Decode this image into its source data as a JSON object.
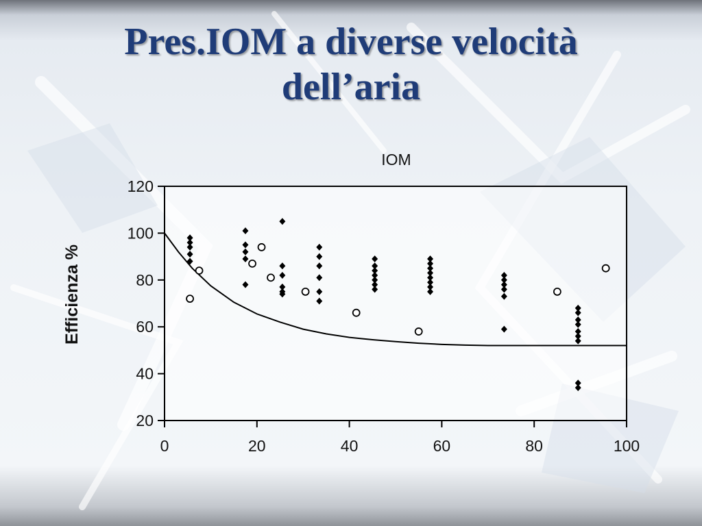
{
  "slide": {
    "title_line1": "Pres.IOM a diverse velocità",
    "title_line2": "dell’aria"
  },
  "chart_data": {
    "type": "scatter",
    "title": "IOM",
    "xlabel": "",
    "ylabel": "Efficienza %",
    "xlim": [
      0,
      100
    ],
    "ylim": [
      20,
      120
    ],
    "xticks": [
      "0",
      "20",
      "40",
      "60",
      "80",
      "100"
    ],
    "yticks": [
      "20",
      "40",
      "60",
      "80",
      "100",
      "120"
    ],
    "grid": false,
    "legend": "none",
    "series": [
      {
        "marker": "filled-diamond",
        "points": [
          [
            5.5,
            98
          ],
          [
            5.5,
            96
          ],
          [
            5.5,
            94
          ],
          [
            5.5,
            91
          ],
          [
            5.5,
            88
          ],
          [
            17.5,
            101
          ],
          [
            17.5,
            95
          ],
          [
            17.5,
            92
          ],
          [
            17.5,
            89
          ],
          [
            17.5,
            78
          ],
          [
            25.5,
            105
          ],
          [
            25.5,
            86
          ],
          [
            25.5,
            82
          ],
          [
            25.5,
            77
          ],
          [
            25.5,
            75
          ],
          [
            25.5,
            74
          ],
          [
            33.5,
            94
          ],
          [
            33.5,
            90
          ],
          [
            33.5,
            86
          ],
          [
            33.5,
            81
          ],
          [
            33.5,
            75
          ],
          [
            33.5,
            71
          ],
          [
            45.5,
            89
          ],
          [
            45.5,
            86
          ],
          [
            45.5,
            84
          ],
          [
            45.5,
            82
          ],
          [
            45.5,
            80
          ],
          [
            45.5,
            78
          ],
          [
            45.5,
            76
          ],
          [
            57.5,
            89
          ],
          [
            57.5,
            87
          ],
          [
            57.5,
            85
          ],
          [
            57.5,
            83
          ],
          [
            57.5,
            81
          ],
          [
            57.5,
            79
          ],
          [
            57.5,
            77
          ],
          [
            57.5,
            75
          ],
          [
            73.5,
            82
          ],
          [
            73.5,
            80
          ],
          [
            73.5,
            78
          ],
          [
            73.5,
            76
          ],
          [
            73.5,
            73
          ],
          [
            73.5,
            59
          ],
          [
            89.5,
            68
          ],
          [
            89.5,
            66
          ],
          [
            89.5,
            63
          ],
          [
            89.5,
            61
          ],
          [
            89.5,
            58
          ],
          [
            89.5,
            56
          ],
          [
            89.5,
            54
          ],
          [
            89.5,
            36
          ],
          [
            89.5,
            34
          ]
        ]
      },
      {
        "marker": "open-circle",
        "points": [
          [
            5.5,
            72
          ],
          [
            7.5,
            84
          ],
          [
            19,
            87
          ],
          [
            21,
            94
          ],
          [
            23,
            81
          ],
          [
            30.5,
            75
          ],
          [
            41.5,
            66
          ],
          [
            55,
            58
          ],
          [
            85,
            75
          ],
          [
            95.5,
            85
          ]
        ]
      }
    ],
    "curve": {
      "points": [
        [
          0,
          100
        ],
        [
          3,
          92
        ],
        [
          6,
          85
        ],
        [
          10,
          77.5
        ],
        [
          15,
          70.5
        ],
        [
          20,
          65.5
        ],
        [
          25,
          62
        ],
        [
          30,
          59
        ],
        [
          35,
          57
        ],
        [
          40,
          55.5
        ],
        [
          45,
          54.5
        ],
        [
          50,
          53.7
        ],
        [
          55,
          53
        ],
        [
          60,
          52.5
        ],
        [
          65,
          52.2
        ],
        [
          70,
          52
        ],
        [
          80,
          52
        ],
        [
          90,
          52
        ],
        [
          100,
          52
        ]
      ]
    }
  }
}
